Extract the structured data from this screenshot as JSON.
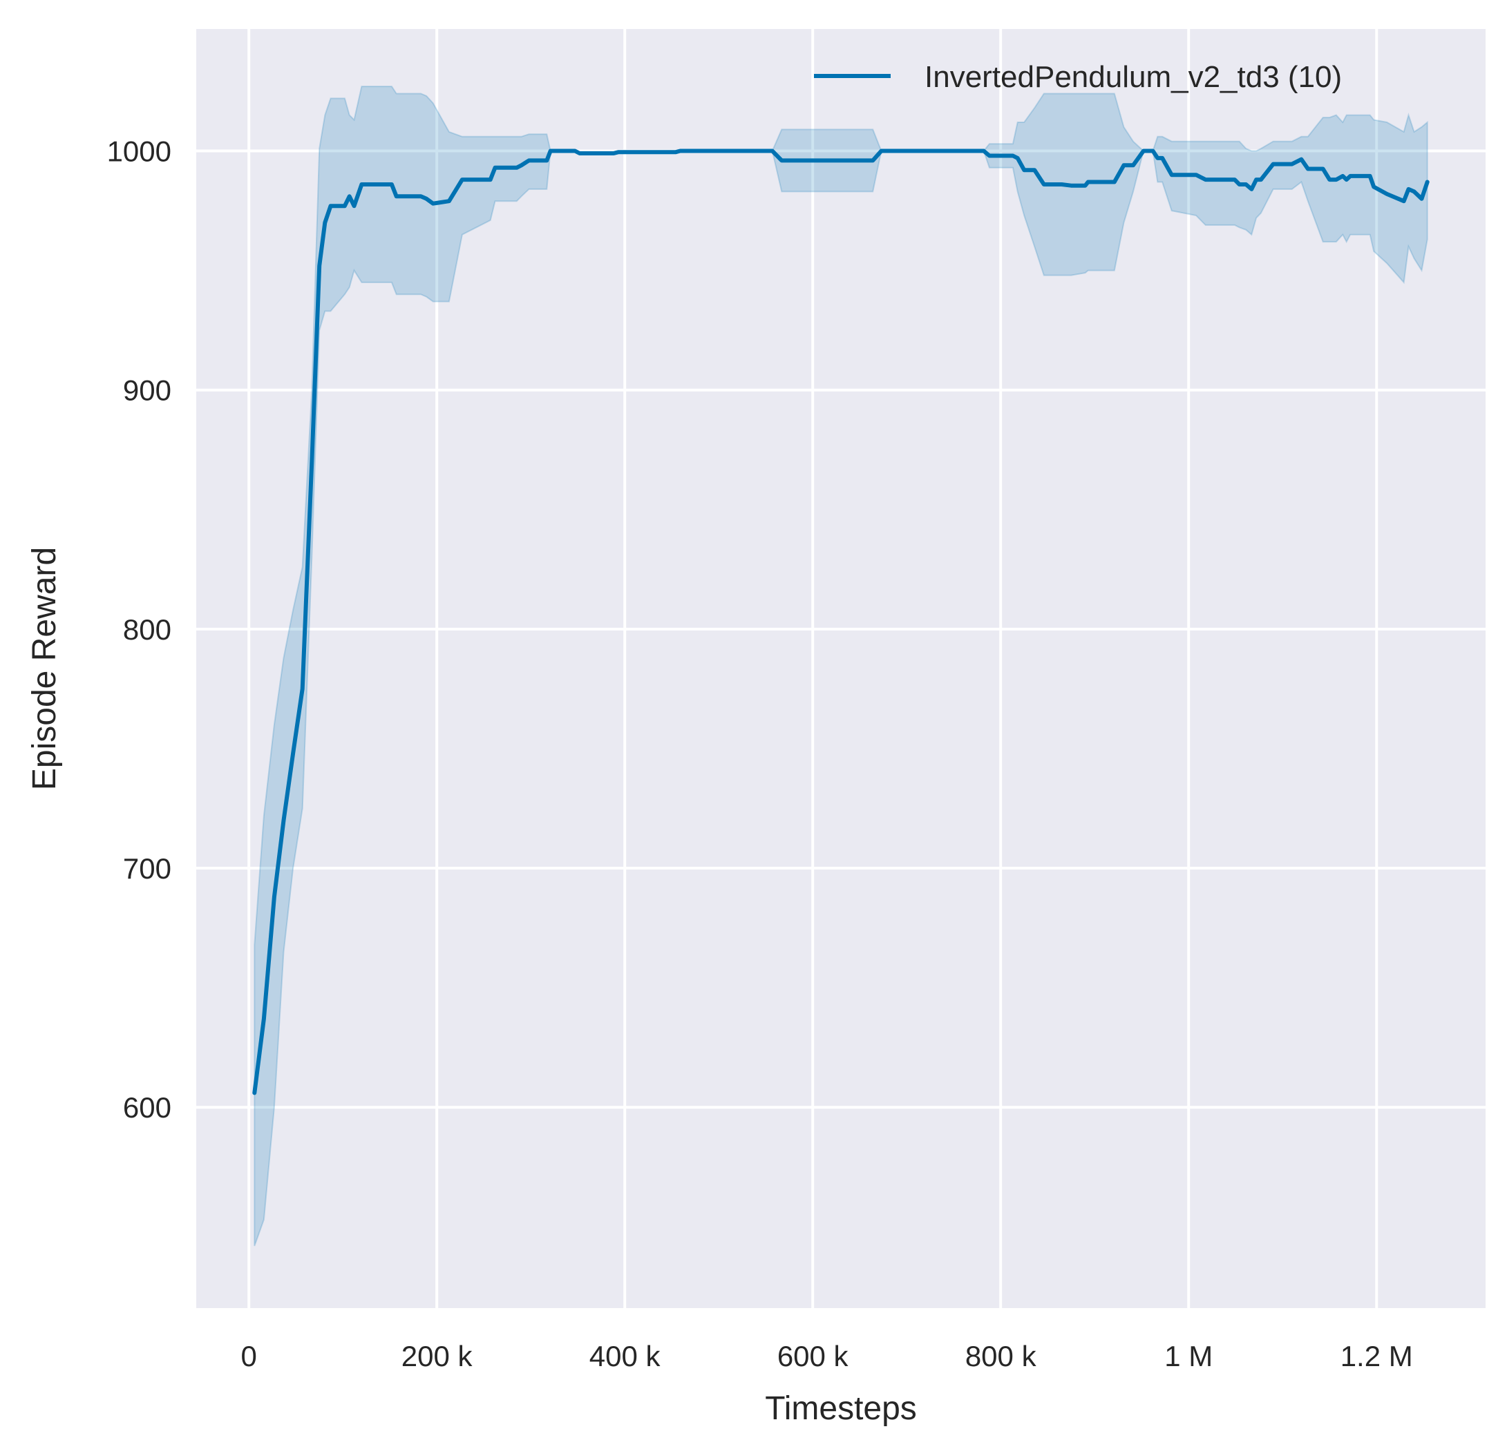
{
  "chart_data": {
    "type": "line",
    "title": "",
    "xlabel": "Timesteps",
    "ylabel": "Episode Reward",
    "xlim": [
      -56000,
      1316000
    ],
    "ylim": [
      516,
      1051
    ],
    "grid": true,
    "legend_position": "top-right",
    "xticks": [
      0,
      200000,
      400000,
      600000,
      800000,
      1000000,
      1200000
    ],
    "xtick_labels": [
      "0",
      "200 k",
      "400 k",
      "600 k",
      "800 k",
      "1 M",
      "1.2 M"
    ],
    "yticks": [
      600,
      700,
      800,
      900,
      1000
    ],
    "ytick_labels": [
      "600",
      "700",
      "800",
      "900",
      "1000"
    ],
    "colors": {
      "background": "#eaeaf2",
      "grid": "#ffffff",
      "series": "#0072b2"
    },
    "series": [
      {
        "name": "InvertedPendulum_v2_td3 (10)",
        "x": [
          6000,
          16000,
          27000,
          37000,
          47000,
          57000,
          67000,
          75000,
          81000,
          87000,
          102000,
          107000,
          112000,
          120000,
          152000,
          157000,
          183000,
          189000,
          196000,
          213000,
          227000,
          257000,
          262000,
          285000,
          290000,
          298000,
          317000,
          321000,
          347000,
          352000,
          388000,
          393000,
          454000,
          459000,
          557000,
          567000,
          664000,
          673000,
          782000,
          788000,
          813000,
          818000,
          825000,
          836000,
          846000,
          865000,
          875000,
          890000,
          893000,
          921000,
          931000,
          941000,
          952000,
          962000,
          967000,
          972000,
          982000,
          1008000,
          1018000,
          1049000,
          1054000,
          1061000,
          1067000,
          1072000,
          1077000,
          1090000,
          1110000,
          1120000,
          1127000,
          1143000,
          1150000,
          1157000,
          1164000,
          1168000,
          1172000,
          1193000,
          1197000,
          1211000,
          1229000,
          1234000,
          1240000,
          1248000,
          1254000
        ],
        "y": [
          606,
          637,
          688,
          720,
          748,
          775,
          870,
          952,
          970,
          977,
          977,
          981,
          977,
          986,
          986,
          981,
          981,
          980,
          978,
          979,
          988,
          988,
          993,
          993,
          994,
          996,
          996,
          1000,
          1000,
          999,
          999,
          999.5,
          999.5,
          1000,
          1000,
          996,
          996,
          1000,
          1000,
          998,
          998,
          997,
          992,
          992,
          986,
          986,
          985.5,
          985.5,
          987,
          987,
          994,
          994,
          1000,
          1000,
          997,
          997,
          990,
          990,
          988,
          988,
          986,
          986,
          984,
          988,
          988,
          994.5,
          994.5,
          996.5,
          992.5,
          992.5,
          988,
          988,
          989.5,
          988,
          989.5,
          989.5,
          985,
          982,
          979,
          984,
          983,
          980,
          987
        ],
        "upper": [
          668,
          722,
          760,
          788,
          808,
          826,
          900,
          1001,
          1015,
          1022,
          1022,
          1015,
          1013,
          1027,
          1027,
          1024,
          1024,
          1023,
          1020,
          1008,
          1006,
          1006,
          1006,
          1006,
          1006,
          1007,
          1007,
          1000,
          1000,
          999,
          999,
          999.5,
          999.5,
          1000,
          1000,
          1009,
          1009,
          1000,
          1000,
          1003,
          1003,
          1012,
          1012,
          1018,
          1024,
          1024,
          1024,
          1024,
          1024,
          1024,
          1010,
          1004,
          1000,
          1000,
          1006,
          1006,
          1004,
          1004,
          1004,
          1004,
          1004,
          1001,
          1000,
          1000,
          1001,
          1004,
          1004,
          1006,
          1006,
          1014,
          1014,
          1015,
          1012,
          1015,
          1015,
          1015,
          1013,
          1012,
          1008,
          1015,
          1008,
          1010,
          1012
        ],
        "lower": [
          542,
          553,
          600,
          665,
          700,
          725,
          830,
          925,
          933,
          933,
          940,
          943,
          950,
          945,
          945,
          940,
          940,
          939,
          937,
          937,
          965,
          971,
          979,
          979,
          981,
          984,
          984,
          1000,
          1000,
          999,
          999,
          999.5,
          999.5,
          1000,
          1000,
          983,
          983,
          1000,
          1000,
          993,
          993,
          983,
          973,
          960,
          948,
          948,
          948,
          949,
          950,
          950,
          970,
          983,
          1000,
          1000,
          987,
          987,
          975,
          973,
          969,
          969,
          968,
          967,
          965,
          972,
          974,
          984,
          984,
          987,
          979,
          962,
          962,
          962,
          965,
          962,
          965,
          965,
          958,
          953,
          945,
          960,
          955,
          950,
          963
        ]
      }
    ]
  }
}
